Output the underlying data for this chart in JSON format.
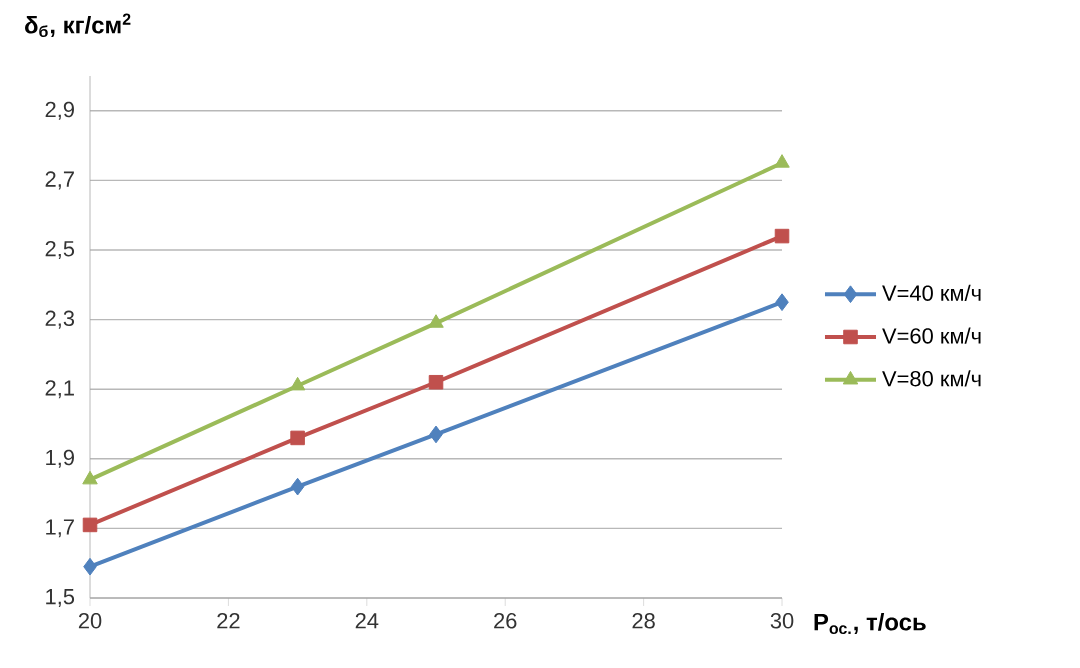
{
  "chart_data": {
    "type": "line",
    "xlabel": "P$_{ос.}$, т/ось",
    "ylabel": "δ$_{б}$, кг/см$^{2}$",
    "x": [
      20,
      23,
      25,
      30
    ],
    "series": [
      {
        "name": "V=40 км/ч",
        "color": "#4f81bd",
        "marker": "diamond",
        "values": [
          1.59,
          1.82,
          1.97,
          2.35
        ]
      },
      {
        "name": "V=60 км/ч",
        "color": "#c0504d",
        "marker": "square",
        "values": [
          1.71,
          1.96,
          2.12,
          2.54
        ]
      },
      {
        "name": "V=80 км/ч",
        "color": "#9bbb59",
        "marker": "triangle",
        "values": [
          1.84,
          2.11,
          2.29,
          2.75
        ]
      }
    ],
    "xlim": [
      20,
      30
    ],
    "xticks": [
      20,
      22,
      24,
      26,
      28,
      30
    ],
    "ylim": [
      1.5,
      3.0
    ],
    "yticks": [
      {
        "value": 1.5,
        "label": "1,5"
      },
      {
        "value": 1.7,
        "label": "1,7"
      },
      {
        "value": 1.9,
        "label": "1,9"
      },
      {
        "value": 2.1,
        "label": "2,1"
      },
      {
        "value": 2.3,
        "label": "2,3"
      },
      {
        "value": 2.5,
        "label": "2,5"
      },
      {
        "value": 2.7,
        "label": "2,7"
      },
      {
        "value": 2.9,
        "label": "2,9"
      }
    ],
    "grid": "y",
    "legend": "right",
    "line_style": "solid"
  }
}
